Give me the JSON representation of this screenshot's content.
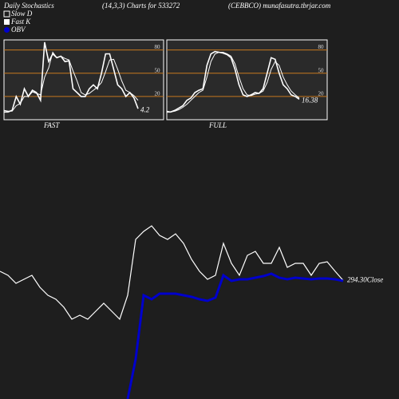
{
  "header": {
    "left": "Daily Stochastics",
    "center": "(14,3,3) Charts for 533272",
    "right": "(CEBBCO) munafasutra.tbrjar.com"
  },
  "chart_data": [
    {
      "type": "stoch",
      "label": "FAST",
      "categories": [
        null,
        null,
        null,
        null,
        null,
        null,
        null,
        null,
        null,
        null,
        null,
        null,
        null,
        null,
        null,
        null,
        null,
        null,
        null,
        null,
        null,
        null,
        null,
        null,
        null,
        null,
        null,
        null,
        null,
        null,
        null,
        null,
        null,
        null
      ],
      "series": [
        {
          "name": "Fast K",
          "color": "#ffffff",
          "values": [
            0,
            0,
            2,
            20,
            10,
            30,
            20,
            28,
            25,
            15,
            90,
            65,
            75,
            70,
            72,
            65,
            66,
            30,
            25,
            20,
            20,
            30,
            35,
            30,
            50,
            75,
            75,
            55,
            35,
            30,
            20,
            25,
            18,
            4.2
          ]
        },
        {
          "name": "Slow D",
          "color": "#ffffff",
          "values": [
            2,
            1,
            1,
            8,
            11,
            20,
            20,
            26,
            24,
            22,
            45,
            57,
            77,
            70,
            72,
            69,
            67,
            53,
            40,
            25,
            22,
            24,
            28,
            32,
            38,
            52,
            67,
            68,
            55,
            40,
            28,
            25,
            21,
            15
          ]
        }
      ],
      "ylim": [
        -10,
        93
      ],
      "yticks": [
        20,
        50,
        80
      ],
      "grid_color": "#c8781e"
    },
    {
      "type": "stoch",
      "label": "FULL",
      "categories": [
        null,
        null,
        null,
        null,
        null,
        null,
        null,
        null,
        null,
        null,
        null,
        null,
        null,
        null,
        null,
        null,
        null,
        null,
        null,
        null,
        null,
        null,
        null,
        null,
        null,
        null,
        null,
        null,
        null,
        null,
        null,
        null,
        null,
        null
      ],
      "series": [
        {
          "name": "Fast K",
          "color": "#ffffff",
          "values": [
            0,
            0,
            2,
            5,
            8,
            15,
            18,
            25,
            28,
            30,
            60,
            75,
            78,
            77,
            76,
            74,
            70,
            55,
            35,
            22,
            20,
            22,
            25,
            24,
            30,
            50,
            70,
            68,
            50,
            35,
            30,
            22,
            20,
            16.38
          ]
        },
        {
          "name": "Slow D",
          "color": "#ffffff",
          "values": [
            1,
            0,
            1,
            3,
            6,
            10,
            15,
            20,
            25,
            28,
            45,
            65,
            75,
            77,
            77,
            75,
            72,
            62,
            45,
            30,
            22,
            21,
            23,
            24,
            27,
            38,
            55,
            65,
            60,
            45,
            35,
            27,
            22,
            18
          ]
        }
      ],
      "ylim": [
        -10,
        93
      ],
      "yticks": [
        20,
        50,
        80
      ],
      "grid_color": "#c8781e"
    },
    {
      "type": "price",
      "categories": [
        null,
        null,
        null,
        null,
        null,
        null,
        null,
        null,
        null,
        null,
        null,
        null,
        null,
        null,
        null,
        null,
        null,
        null,
        null,
        null,
        null,
        null,
        null,
        null,
        null,
        null,
        null,
        null,
        null,
        null,
        null,
        null,
        null,
        null,
        null,
        null,
        null,
        null,
        null,
        null,
        null,
        null,
        null,
        null
      ],
      "series": [
        {
          "name": "Close",
          "color": "#ffffff",
          "values": [
            300,
            297.5,
            292.5,
            295,
            297.5,
            290,
            285,
            282.5,
            277.5,
            270,
            272.5,
            270,
            275,
            280,
            275,
            270,
            285,
            320,
            325,
            328.5,
            322.5,
            320,
            323.5,
            317.5,
            307.5,
            300,
            295,
            297.5,
            317.5,
            305,
            297.5,
            310,
            312.5,
            305,
            305,
            315,
            302.5,
            305,
            305,
            297.5,
            305,
            306,
            300,
            294.3
          ],
          "value_labels": [
            null,
            null,
            null,
            null,
            null,
            null,
            null,
            null,
            null,
            null,
            null,
            null,
            null,
            null,
            null,
            null,
            null,
            null,
            null,
            null,
            null,
            null,
            null,
            null,
            null,
            null,
            null,
            null,
            null,
            null,
            null,
            null,
            null,
            null,
            null,
            null,
            null,
            null,
            null,
            null,
            null,
            null,
            null,
            "294.30"
          ]
        },
        {
          "name": "OBV",
          "color": "#0000cc",
          "axis": "y2",
          "values": [
            null,
            null,
            null,
            null,
            null,
            null,
            null,
            null,
            null,
            null,
            null,
            null,
            null,
            null,
            null,
            null,
            0,
            50,
            130,
            125,
            132,
            132,
            132,
            130,
            128,
            125,
            123,
            127,
            155,
            148,
            150,
            150,
            152,
            154,
            157,
            152,
            150,
            152,
            151,
            150,
            151,
            151,
            150,
            148
          ]
        }
      ],
      "ylim": [
        220,
        350
      ],
      "y2lim": [
        0,
        260
      ]
    }
  ]
}
